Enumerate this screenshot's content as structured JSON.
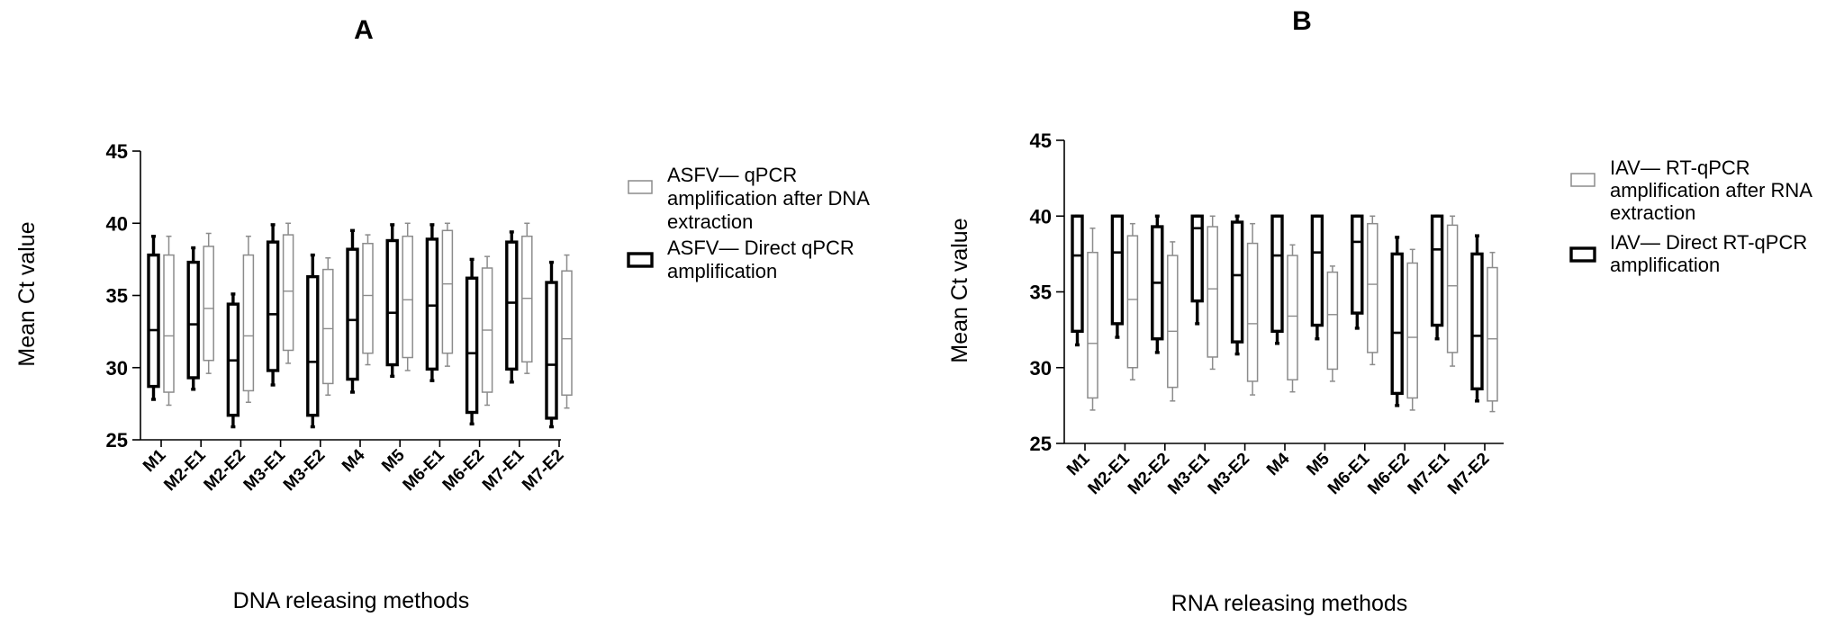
{
  "chart_data": [
    {
      "type": "box",
      "panel_label": "A",
      "ylabel": "Mean Ct value",
      "xlabel": "DNA releasing methods",
      "ylim": [
        25,
        45
      ],
      "yticks": [
        25,
        30,
        35,
        40,
        45
      ],
      "categories": [
        "M1",
        "M2-E1",
        "M2-E2",
        "M3-E1",
        "M3-E2",
        "M4",
        "M5",
        "M6-E1",
        "M6-E2",
        "M7-E1",
        "M7-E2"
      ],
      "series": [
        {
          "name": "ASFV— Direct qPCR amplification",
          "style": "bold-black",
          "stroke": "#000000",
          "boxes": [
            {
              "min": 27.8,
              "q1": 28.7,
              "median": 32.6,
              "q3": 37.8,
              "max": 39.1
            },
            {
              "min": 28.5,
              "q1": 29.3,
              "median": 33.0,
              "q3": 37.3,
              "max": 38.3
            },
            {
              "min": 25.9,
              "q1": 26.7,
              "median": 30.5,
              "q3": 34.4,
              "max": 35.1
            },
            {
              "min": 28.8,
              "q1": 29.8,
              "median": 33.7,
              "q3": 38.7,
              "max": 39.9
            },
            {
              "min": 25.9,
              "q1": 26.7,
              "median": 30.4,
              "q3": 36.3,
              "max": 37.8
            },
            {
              "min": 28.3,
              "q1": 29.2,
              "median": 33.3,
              "q3": 38.2,
              "max": 39.5
            },
            {
              "min": 29.4,
              "q1": 30.2,
              "median": 33.8,
              "q3": 38.8,
              "max": 39.9
            },
            {
              "min": 29.1,
              "q1": 29.9,
              "median": 34.3,
              "q3": 38.9,
              "max": 39.9
            },
            {
              "min": 26.1,
              "q1": 26.9,
              "median": 31.0,
              "q3": 36.2,
              "max": 37.5
            },
            {
              "min": 29.0,
              "q1": 29.9,
              "median": 34.5,
              "q3": 38.7,
              "max": 39.4
            },
            {
              "min": 25.9,
              "q1": 26.5,
              "median": 30.2,
              "q3": 35.9,
              "max": 37.3
            }
          ]
        },
        {
          "name": "ASFV— qPCR amplification after DNA extraction",
          "style": "thin-gray",
          "stroke": "#8c8c8c",
          "boxes": [
            {
              "min": 27.4,
              "q1": 28.3,
              "median": 32.2,
              "q3": 37.8,
              "max": 39.1
            },
            {
              "min": 29.6,
              "q1": 30.5,
              "median": 34.1,
              "q3": 38.4,
              "max": 39.3
            },
            {
              "min": 27.6,
              "q1": 28.4,
              "median": 32.2,
              "q3": 37.8,
              "max": 39.1
            },
            {
              "min": 30.3,
              "q1": 31.2,
              "median": 35.3,
              "q3": 39.2,
              "max": 40.0
            },
            {
              "min": 28.1,
              "q1": 28.9,
              "median": 32.7,
              "q3": 36.8,
              "max": 37.6
            },
            {
              "min": 30.2,
              "q1": 31.0,
              "median": 35.0,
              "q3": 38.6,
              "max": 39.2
            },
            {
              "min": 29.8,
              "q1": 30.7,
              "median": 34.7,
              "q3": 39.1,
              "max": 40.0
            },
            {
              "min": 30.1,
              "q1": 31.0,
              "median": 35.8,
              "q3": 39.5,
              "max": 40.0
            },
            {
              "min": 27.4,
              "q1": 28.3,
              "median": 32.6,
              "q3": 36.9,
              "max": 37.7
            },
            {
              "min": 29.6,
              "q1": 30.4,
              "median": 34.8,
              "q3": 39.1,
              "max": 40.0
            },
            {
              "min": 27.2,
              "q1": 28.1,
              "median": 32.0,
              "q3": 36.7,
              "max": 37.8
            }
          ]
        }
      ],
      "legend": [
        {
          "series": 1,
          "lines": [
            "ASFV— qPCR",
            "amplification after DNA",
            "extraction"
          ]
        },
        {
          "series": 0,
          "lines": [
            "ASFV— Direct qPCR",
            "amplification"
          ]
        }
      ]
    },
    {
      "type": "box",
      "panel_label": "B",
      "ylabel": "Mean Ct value",
      "xlabel": "RNA releasing methods",
      "ylim": [
        25,
        45
      ],
      "yticks": [
        25,
        30,
        35,
        40,
        45
      ],
      "categories": [
        "M1",
        "M2-E1",
        "M2-E2",
        "M3-E1",
        "M3-E2",
        "M4",
        "M5",
        "M6-E1",
        "M6-E2",
        "M7-E1",
        "M7-E2"
      ],
      "series": [
        {
          "name": "IAV— Direct RT-qPCR amplification",
          "style": "bold-black",
          "stroke": "#000000",
          "boxes": [
            {
              "min": 31.5,
              "q1": 32.4,
              "median": 37.4,
              "q3": 40.0,
              "max": 40.0
            },
            {
              "min": 32.0,
              "q1": 32.9,
              "median": 37.6,
              "q3": 40.0,
              "max": 40.0
            },
            {
              "min": 31.0,
              "q1": 31.9,
              "median": 35.6,
              "q3": 39.3,
              "max": 40.0
            },
            {
              "min": 32.9,
              "q1": 34.4,
              "median": 39.2,
              "q3": 40.0,
              "max": 40.0
            },
            {
              "min": 30.9,
              "q1": 31.7,
              "median": 36.1,
              "q3": 39.6,
              "max": 40.0
            },
            {
              "min": 31.6,
              "q1": 32.4,
              "median": 37.4,
              "q3": 40.0,
              "max": 40.0
            },
            {
              "min": 31.9,
              "q1": 32.8,
              "median": 37.6,
              "q3": 40.0,
              "max": 40.0
            },
            {
              "min": 32.6,
              "q1": 33.6,
              "median": 38.3,
              "q3": 40.0,
              "max": 40.0
            },
            {
              "min": 27.5,
              "q1": 28.3,
              "median": 32.3,
              "q3": 37.5,
              "max": 38.6
            },
            {
              "min": 31.9,
              "q1": 32.8,
              "median": 37.8,
              "q3": 40.0,
              "max": 40.0
            },
            {
              "min": 27.8,
              "q1": 28.6,
              "median": 32.1,
              "q3": 37.5,
              "max": 38.7
            }
          ]
        },
        {
          "name": "IAV— RT-qPCR amplification after RNA extraction",
          "style": "thin-gray",
          "stroke": "#8c8c8c",
          "boxes": [
            {
              "min": 27.2,
              "q1": 28.0,
              "median": 31.6,
              "q3": 37.6,
              "max": 39.2
            },
            {
              "min": 29.2,
              "q1": 30.0,
              "median": 34.5,
              "q3": 38.7,
              "max": 39.5
            },
            {
              "min": 27.8,
              "q1": 28.7,
              "median": 32.4,
              "q3": 37.4,
              "max": 38.3
            },
            {
              "min": 29.9,
              "q1": 30.7,
              "median": 35.2,
              "q3": 39.3,
              "max": 40.0
            },
            {
              "min": 28.2,
              "q1": 29.1,
              "median": 32.9,
              "q3": 38.2,
              "max": 39.5
            },
            {
              "min": 28.4,
              "q1": 29.2,
              "median": 33.4,
              "q3": 37.4,
              "max": 38.1
            },
            {
              "min": 29.1,
              "q1": 29.9,
              "median": 33.5,
              "q3": 36.3,
              "max": 36.7
            },
            {
              "min": 30.2,
              "q1": 31.0,
              "median": 35.5,
              "q3": 39.5,
              "max": 40.0
            },
            {
              "min": 27.2,
              "q1": 28.0,
              "median": 32.0,
              "q3": 36.9,
              "max": 37.8
            },
            {
              "min": 30.1,
              "q1": 31.0,
              "median": 35.4,
              "q3": 39.4,
              "max": 40.0
            },
            {
              "min": 27.1,
              "q1": 27.8,
              "median": 31.9,
              "q3": 36.6,
              "max": 37.6
            }
          ]
        }
      ],
      "legend": [
        {
          "series": 1,
          "lines": [
            "IAV— RT-qPCR",
            "amplification after RNA",
            "extraction"
          ]
        },
        {
          "series": 0,
          "lines": [
            "IAV— Direct RT-qPCR",
            "amplification"
          ]
        }
      ]
    }
  ]
}
